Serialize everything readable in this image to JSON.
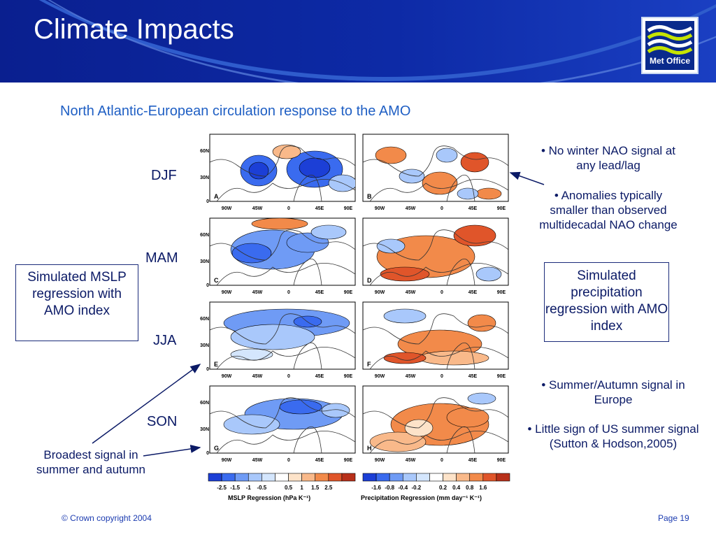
{
  "header": {
    "title": "Climate Impacts",
    "logo_text": "Met Office"
  },
  "subtitle": "North Atlantic-European circulation response to the AMO",
  "seasons": [
    "DJF",
    "MAM",
    "JJA",
    "SON"
  ],
  "panel_letters": [
    "A",
    "B",
    "C",
    "D",
    "E",
    "F",
    "G",
    "H"
  ],
  "axes": {
    "lat_labels": [
      "60N",
      "30N",
      "0"
    ],
    "lon_labels": [
      "90W",
      "45W",
      "0",
      "45E",
      "90E"
    ]
  },
  "left_box": {
    "text": "Simulated MSLP regression with AMO index"
  },
  "right_box": {
    "text": "Simulated precipitation regression with AMO index"
  },
  "notes_top": [
    "• No winter NAO signal at any lead/lag",
    "• Anomalies typically smaller than observed multidecadal NAO change"
  ],
  "notes_bottom": [
    "• Summer/Autumn signal in Europe",
    "• Little sign of US summer signal (Sutton & Hodson,2005)"
  ],
  "left_note": "Broadest signal in summer and autumn",
  "colorbars": {
    "mslp": {
      "ticks": [
        "-2.5",
        "-1.5",
        "-1",
        "-0.5",
        "0.5",
        "1",
        "1.5",
        "2.5"
      ],
      "title": "MSLP Regression (hPa K⁻¹)"
    },
    "precip": {
      "ticks": [
        "-1.6",
        "-0.8",
        "-0.4",
        "-0.2",
        "0.2",
        "0.4",
        "0.8",
        "1.6"
      ],
      "title": "Precipitation Regression (mm day⁻¹ K⁻¹)"
    }
  },
  "footer": {
    "copyright": "© Crown copyright 2004",
    "page": "Page 19"
  },
  "colors": {
    "header": "#0d2aa6",
    "accent_text": "#1f5fc4",
    "negative_scale": [
      "#1c3fd6",
      "#3a6bef",
      "#6f9bf5",
      "#a9c8fb",
      "#d4e6fd"
    ],
    "positive_scale": [
      "#fde3c9",
      "#f9b98a",
      "#f28a4a",
      "#e0552a",
      "#b8301a"
    ]
  }
}
